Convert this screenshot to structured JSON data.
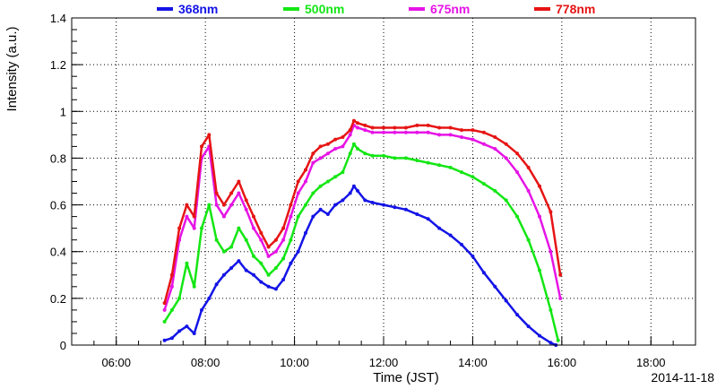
{
  "chart_data": {
    "type": "scatter",
    "title": "",
    "xlabel": "Time (JST)",
    "ylabel": "Intensity (a.u.)",
    "date_label": "2014-11-18",
    "xlim": [
      "05:00",
      "19:00"
    ],
    "ylim": [
      0,
      1.4
    ],
    "grid": true,
    "legend_position": "top",
    "x_ticks": [
      "06:00",
      "08:00",
      "10:00",
      "12:00",
      "14:00",
      "16:00",
      "18:00"
    ],
    "y_ticks": [
      "0",
      "0.2",
      "0.4",
      "0.6",
      "0.8",
      "1",
      "1.2",
      "1.4"
    ],
    "series": [
      {
        "name": "368nm",
        "color": "#1414e6",
        "x": [
          "07:05",
          "07:15",
          "07:25",
          "07:35",
          "07:45",
          "07:55",
          "08:05",
          "08:15",
          "08:25",
          "08:35",
          "08:45",
          "08:55",
          "09:05",
          "09:15",
          "09:25",
          "09:35",
          "09:45",
          "09:55",
          "10:05",
          "10:15",
          "10:25",
          "10:35",
          "10:45",
          "10:55",
          "11:05",
          "11:15",
          "11:20",
          "11:25",
          "11:35",
          "11:45",
          "12:00",
          "12:15",
          "12:30",
          "12:45",
          "13:00",
          "13:15",
          "13:30",
          "13:45",
          "14:00",
          "14:15",
          "14:30",
          "14:45",
          "15:00",
          "15:15",
          "15:30",
          "15:45",
          "15:52"
        ],
        "values": [
          0.02,
          0.03,
          0.06,
          0.08,
          0.05,
          0.15,
          0.2,
          0.26,
          0.3,
          0.33,
          0.36,
          0.32,
          0.3,
          0.27,
          0.25,
          0.24,
          0.28,
          0.35,
          0.4,
          0.48,
          0.55,
          0.58,
          0.56,
          0.6,
          0.62,
          0.65,
          0.68,
          0.66,
          0.62,
          0.61,
          0.6,
          0.59,
          0.58,
          0.56,
          0.54,
          0.5,
          0.47,
          0.43,
          0.38,
          0.31,
          0.25,
          0.19,
          0.13,
          0.08,
          0.04,
          0.01,
          0.0
        ]
      },
      {
        "name": "500nm",
        "color": "#14e614",
        "x": [
          "07:05",
          "07:15",
          "07:25",
          "07:35",
          "07:45",
          "07:55",
          "08:05",
          "08:15",
          "08:25",
          "08:35",
          "08:45",
          "08:55",
          "09:05",
          "09:15",
          "09:25",
          "09:35",
          "09:45",
          "09:55",
          "10:05",
          "10:15",
          "10:25",
          "10:35",
          "10:45",
          "10:55",
          "11:05",
          "11:15",
          "11:20",
          "11:25",
          "11:35",
          "11:45",
          "12:00",
          "12:15",
          "12:30",
          "12:45",
          "13:00",
          "13:15",
          "13:30",
          "13:45",
          "14:00",
          "14:15",
          "14:30",
          "14:45",
          "15:00",
          "15:15",
          "15:30",
          "15:45",
          "15:55"
        ],
        "values": [
          0.1,
          0.15,
          0.2,
          0.35,
          0.25,
          0.5,
          0.6,
          0.45,
          0.4,
          0.42,
          0.5,
          0.45,
          0.38,
          0.35,
          0.3,
          0.33,
          0.37,
          0.45,
          0.55,
          0.6,
          0.65,
          0.68,
          0.7,
          0.72,
          0.74,
          0.82,
          0.86,
          0.84,
          0.82,
          0.81,
          0.81,
          0.8,
          0.8,
          0.79,
          0.78,
          0.77,
          0.76,
          0.74,
          0.72,
          0.69,
          0.66,
          0.62,
          0.55,
          0.45,
          0.32,
          0.15,
          0.02
        ]
      },
      {
        "name": "675nm",
        "color": "#e614e6",
        "x": [
          "07:05",
          "07:15",
          "07:25",
          "07:35",
          "07:45",
          "07:55",
          "08:05",
          "08:15",
          "08:25",
          "08:35",
          "08:45",
          "08:55",
          "09:05",
          "09:15",
          "09:25",
          "09:35",
          "09:45",
          "09:55",
          "10:05",
          "10:15",
          "10:25",
          "10:35",
          "10:45",
          "10:55",
          "11:05",
          "11:15",
          "11:20",
          "11:25",
          "11:35",
          "11:45",
          "12:00",
          "12:15",
          "12:30",
          "12:45",
          "13:00",
          "13:15",
          "13:30",
          "13:45",
          "14:00",
          "14:15",
          "14:30",
          "14:45",
          "15:00",
          "15:15",
          "15:30",
          "15:45",
          "15:58"
        ],
        "values": [
          0.15,
          0.25,
          0.45,
          0.55,
          0.5,
          0.8,
          0.85,
          0.6,
          0.55,
          0.6,
          0.65,
          0.58,
          0.5,
          0.45,
          0.38,
          0.4,
          0.45,
          0.55,
          0.65,
          0.7,
          0.78,
          0.8,
          0.82,
          0.84,
          0.85,
          0.9,
          0.94,
          0.93,
          0.92,
          0.91,
          0.91,
          0.91,
          0.91,
          0.91,
          0.91,
          0.9,
          0.9,
          0.89,
          0.88,
          0.86,
          0.84,
          0.8,
          0.74,
          0.66,
          0.55,
          0.4,
          0.2
        ]
      },
      {
        "name": "778nm",
        "color": "#e61414",
        "x": [
          "07:05",
          "07:15",
          "07:25",
          "07:35",
          "07:45",
          "07:55",
          "08:05",
          "08:15",
          "08:25",
          "08:35",
          "08:45",
          "08:55",
          "09:05",
          "09:15",
          "09:25",
          "09:35",
          "09:45",
          "09:55",
          "10:05",
          "10:15",
          "10:25",
          "10:35",
          "10:45",
          "10:55",
          "11:05",
          "11:15",
          "11:20",
          "11:25",
          "11:35",
          "11:45",
          "12:00",
          "12:15",
          "12:30",
          "12:45",
          "13:00",
          "13:15",
          "13:30",
          "13:45",
          "14:00",
          "14:15",
          "14:30",
          "14:45",
          "15:00",
          "15:15",
          "15:30",
          "15:45",
          "15:58"
        ],
        "values": [
          0.18,
          0.3,
          0.5,
          0.6,
          0.55,
          0.85,
          0.9,
          0.65,
          0.6,
          0.65,
          0.7,
          0.62,
          0.55,
          0.48,
          0.42,
          0.45,
          0.5,
          0.6,
          0.7,
          0.75,
          0.82,
          0.85,
          0.86,
          0.88,
          0.89,
          0.92,
          0.96,
          0.95,
          0.94,
          0.93,
          0.93,
          0.93,
          0.93,
          0.94,
          0.94,
          0.93,
          0.93,
          0.92,
          0.92,
          0.91,
          0.89,
          0.86,
          0.82,
          0.76,
          0.68,
          0.57,
          0.3
        ]
      }
    ]
  }
}
